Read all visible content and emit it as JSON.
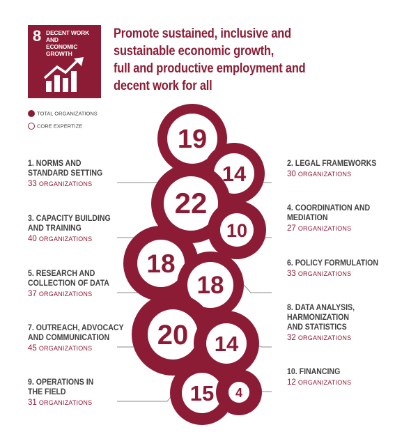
{
  "goal": {
    "number": "8",
    "label_lines": [
      "DECENT WORK AND",
      "ECONOMIC GROWTH"
    ],
    "icon": "growth-chart-icon",
    "color": "#8c1c35"
  },
  "headline_lines": [
    "Promote sustained, inclusive and",
    "sustainable economic growth,",
    "full and productive employment and",
    "decent work for all"
  ],
  "legend": {
    "total": "TOTAL ORGANIZATIONS",
    "core": "CORE EXPERTIZE"
  },
  "categories": [
    {
      "name_lines": [
        "1. NORMS AND",
        "STANDARD SETTING"
      ],
      "count": "33",
      "unit": "ORGANIZATIONS",
      "core": "19"
    },
    {
      "name_lines": [
        "2. LEGAL FRAMEWORKS"
      ],
      "count": "30",
      "unit": "ORGANIZATIONS",
      "core": "14"
    },
    {
      "name_lines": [
        "3. CAPACITY BUILDING",
        "AND TRAINING"
      ],
      "count": "40",
      "unit": "ORGANIZATIONS",
      "core": "22"
    },
    {
      "name_lines": [
        "4. COORDINATION AND",
        "MEDIATION"
      ],
      "count": "27",
      "unit": "ORGANIZATIONS",
      "core": "10"
    },
    {
      "name_lines": [
        "5. RESEARCH AND",
        "COLLECTION OF DATA"
      ],
      "count": "37",
      "unit": "ORGANIZATIONS",
      "core": "18"
    },
    {
      "name_lines": [
        "6. POLICY FORMULATION"
      ],
      "count": "33",
      "unit": "ORGANIZATIONS",
      "core": "18"
    },
    {
      "name_lines": [
        "7. OUTREACH, ADVOCACY",
        "AND COMMUNICATION"
      ],
      "count": "45",
      "unit": "ORGANIZATIONS",
      "core": "20"
    },
    {
      "name_lines": [
        "8. DATA ANALYSIS,",
        "HARMONIZATION",
        "AND STATISTICS"
      ],
      "count": "32",
      "unit": "ORGANIZATIONS",
      "core": "14"
    },
    {
      "name_lines": [
        "9. OPERATIONS IN",
        "THE FIELD"
      ],
      "count": "31",
      "unit": "ORGANIZATIONS",
      "core": "15"
    },
    {
      "name_lines": [
        "10. FINANCING"
      ],
      "count": "12",
      "unit": "ORGANIZATIONS",
      "core": "4"
    }
  ]
}
